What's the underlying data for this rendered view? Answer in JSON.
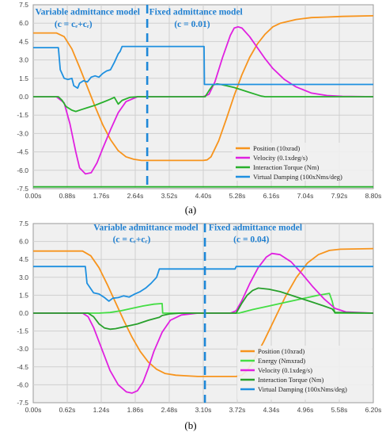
{
  "chart_data": [
    {
      "type": "line",
      "panel_label": "(a)",
      "xlim": [
        0,
        8.8
      ],
      "ylim": [
        -7.5,
        7.5
      ],
      "x_ticks": [
        "0.00s",
        "0.88s",
        "1.76s",
        "2.64s",
        "3.52s",
        "4.40s",
        "5.28s",
        "6.16s",
        "7.04s",
        "7.92s",
        "8.80s"
      ],
      "y_ticks": [
        "7.5",
        "6.0",
        "4.5",
        "3.0",
        "1.5",
        "0.0",
        "-1.5",
        "-3.0",
        "-4.5",
        "-6.0",
        "-7.5"
      ],
      "grid": true,
      "legend_position": "bottom-right",
      "divider_x": 2.95,
      "annotations": [
        {
          "text": "Variable  admittance model",
          "x": 0.05,
          "y": 6.7
        },
        {
          "text": "(c = cₑ+cᵣ)",
          "x": 0.55,
          "y": 5.7
        },
        {
          "text": "Fixed admittance model",
          "x": 3.0,
          "y": 6.7
        },
        {
          "text": "(c = 0.01)",
          "x": 3.65,
          "y": 5.7
        }
      ],
      "colors": {
        "Position": "#f7941d",
        "Velocity": "#e020e0",
        "Interaction Torque": "#28b02c",
        "Virtual Damping": "#1e90e0"
      },
      "series": [
        {
          "name": "Position (10xrad)",
          "legend_name": "Position",
          "color": "#f7941d",
          "x": [
            0,
            0.6,
            0.8,
            1.0,
            1.2,
            1.4,
            1.6,
            1.8,
            2.0,
            2.2,
            2.4,
            2.6,
            2.8,
            3.2,
            4.4,
            4.5,
            4.6,
            4.8,
            5.0,
            5.2,
            5.4,
            5.6,
            5.8,
            6.0,
            6.2,
            6.4,
            6.8,
            7.2,
            7.6,
            8.0,
            8.8
          ],
          "y": [
            5.2,
            5.2,
            4.9,
            3.9,
            2.4,
            0.8,
            -0.8,
            -2.3,
            -3.5,
            -4.4,
            -4.9,
            -5.1,
            -5.2,
            -5.2,
            -5.2,
            -5.15,
            -4.9,
            -3.6,
            -1.8,
            0.1,
            1.8,
            3.2,
            4.3,
            5.1,
            5.7,
            6.0,
            6.3,
            6.45,
            6.5,
            6.55,
            6.6
          ]
        },
        {
          "name": "Velocity (0.1xdeg/s)",
          "legend_name": "Velocity",
          "color": "#e020e0",
          "x": [
            0,
            0.6,
            0.8,
            0.95,
            1.1,
            1.2,
            1.35,
            1.5,
            1.65,
            1.8,
            2.0,
            2.2,
            2.4,
            2.7,
            4.4,
            4.55,
            4.7,
            4.9,
            5.1,
            5.2,
            5.3,
            5.4,
            5.6,
            5.8,
            6.0,
            6.2,
            6.5,
            6.8,
            7.2,
            7.6,
            8.0,
            8.8
          ],
          "y": [
            0,
            0,
            -0.5,
            -2.2,
            -4.5,
            -5.8,
            -6.3,
            -6.2,
            -5.4,
            -4.2,
            -2.7,
            -1.3,
            -0.4,
            0,
            0,
            0.2,
            1.2,
            3.2,
            5.0,
            5.6,
            5.7,
            5.6,
            4.9,
            4.0,
            3.1,
            2.3,
            1.4,
            0.8,
            0.3,
            0.1,
            0.03,
            0
          ]
        },
        {
          "name": "Interaction Torque (Nm)",
          "legend_name": "Interaction Torque",
          "color": "#28b02c",
          "x": [
            0,
            0.65,
            0.75,
            0.85,
            1.0,
            1.1,
            1.25,
            1.4,
            1.6,
            1.8,
            2.0,
            2.1,
            2.2,
            2.3,
            2.5,
            2.7,
            4.45,
            4.55,
            4.65,
            4.75,
            4.85,
            5.0,
            5.2,
            5.4,
            5.6,
            5.8,
            5.9,
            6.0,
            6.2,
            8.8
          ],
          "y": [
            0,
            0,
            -0.3,
            -0.8,
            -1.1,
            -1.2,
            -1.05,
            -0.9,
            -0.7,
            -0.45,
            -0.2,
            -0.05,
            -0.6,
            -0.3,
            -0.05,
            0,
            0,
            0.5,
            0.95,
            1.05,
            1.0,
            0.9,
            0.75,
            0.55,
            0.35,
            0.15,
            0.05,
            0,
            0,
            0
          ]
        },
        {
          "name": "Virtual Damping (100xNms/deg)",
          "legend_name": "Virtual Damping",
          "color": "#1e90e0",
          "x": [
            0,
            0.65,
            0.7,
            0.8,
            0.9,
            1.0,
            1.05,
            1.15,
            1.2,
            1.3,
            1.4,
            1.5,
            1.6,
            1.7,
            1.8,
            1.9,
            2.0,
            2.1,
            2.2,
            2.25,
            2.3,
            2.35,
            4.42,
            4.43,
            8.8
          ],
          "y": [
            4.0,
            4.0,
            2.2,
            1.5,
            1.4,
            1.5,
            0.9,
            0.7,
            1.1,
            1.3,
            1.2,
            1.6,
            1.7,
            1.6,
            1.9,
            2.1,
            2.2,
            2.8,
            3.5,
            3.7,
            4.1,
            4.1,
            4.1,
            1.0,
            1.0
          ]
        },
        {
          "name": "Lower rail",
          "legend_name": "",
          "color": "#28b02c",
          "x": [
            0,
            8.8
          ],
          "y": [
            -7.35,
            -7.35
          ]
        }
      ]
    },
    {
      "type": "line",
      "panel_label": "(b)",
      "xlim": [
        0,
        6.2
      ],
      "ylim": [
        -7.5,
        7.5
      ],
      "x_ticks": [
        "0.00s",
        "0.62s",
        "1.24s",
        "1.86s",
        "2.48s",
        "3.10s",
        "3.72s",
        "4.34s",
        "4.96s",
        "5.58s",
        "6.20s"
      ],
      "y_ticks": [
        "7.5",
        "6.0",
        "4.5",
        "3.0",
        "1.5",
        "0.0",
        "-1.5",
        "-3.0",
        "-4.5",
        "-6.0",
        "-7.5"
      ],
      "grid": true,
      "legend_position": "bottom-right",
      "divider_x": 3.13,
      "annotations": [
        {
          "text": "Variable  admittance model",
          "x": 1.1,
          "y": 6.95
        },
        {
          "text": "(c = cₑ+cᵣ)",
          "x": 1.45,
          "y": 5.95
        },
        {
          "text": "Fixed admittance model",
          "x": 3.2,
          "y": 6.95
        },
        {
          "text": "(c = 0.04)",
          "x": 3.65,
          "y": 5.95
        }
      ],
      "colors": {
        "Position": "#f7941d",
        "Energy": "#44dd44",
        "Velocity": "#e020e0",
        "Interaction Torque": "#28a02c",
        "Virtual Damping": "#1e90e0"
      },
      "series": [
        {
          "name": "Position (10xrad)",
          "legend_name": "Position",
          "color": "#f7941d",
          "x": [
            0,
            0.9,
            1.05,
            1.2,
            1.35,
            1.5,
            1.65,
            1.8,
            1.95,
            2.1,
            2.25,
            2.4,
            2.6,
            2.8,
            3.0,
            3.7,
            3.8,
            3.9,
            4.0,
            4.2,
            4.4,
            4.6,
            4.8,
            5.0,
            5.2,
            5.4,
            5.6,
            6.2
          ],
          "y": [
            5.2,
            5.2,
            4.8,
            3.8,
            2.4,
            0.9,
            -0.6,
            -2.0,
            -3.2,
            -4.1,
            -4.7,
            -5.05,
            -5.2,
            -5.25,
            -5.3,
            -5.3,
            -5.2,
            -4.8,
            -4.1,
            -2.4,
            -0.5,
            1.4,
            3.0,
            4.2,
            4.9,
            5.25,
            5.35,
            5.4
          ]
        },
        {
          "name": "Energy (Nmxrad)",
          "legend_name": "Energy",
          "color": "#44dd44",
          "x": [
            0,
            1.0,
            1.2,
            1.4,
            1.6,
            1.8,
            2.0,
            2.2,
            2.35,
            2.36,
            2.4,
            3.5,
            3.7,
            3.75,
            4.0,
            4.3,
            4.6,
            4.9,
            5.2,
            5.4,
            5.45,
            5.5,
            6.2
          ],
          "y": [
            0,
            0,
            0,
            0.05,
            0.2,
            0.4,
            0.6,
            0.75,
            0.8,
            0,
            0,
            0,
            0,
            0,
            0.3,
            0.6,
            0.9,
            1.2,
            1.5,
            1.65,
            1.0,
            0,
            0
          ]
        },
        {
          "name": "Velocity (0.1xdeg/s)",
          "legend_name": "Velocity",
          "color": "#e020e0",
          "x": [
            0,
            0.9,
            1.0,
            1.1,
            1.25,
            1.4,
            1.55,
            1.7,
            1.8,
            1.9,
            2.0,
            2.1,
            2.2,
            2.35,
            2.5,
            2.7,
            3.0,
            3.6,
            3.7,
            3.8,
            3.95,
            4.1,
            4.25,
            4.35,
            4.5,
            4.7,
            4.9,
            5.1,
            5.3,
            5.5,
            5.7,
            6.2
          ],
          "y": [
            0,
            0,
            -0.3,
            -1.2,
            -3.0,
            -4.8,
            -6.0,
            -6.6,
            -6.7,
            -6.5,
            -5.8,
            -4.6,
            -3.2,
            -1.6,
            -0.6,
            -0.15,
            0,
            0,
            0.2,
            1.0,
            2.5,
            3.8,
            4.7,
            5.0,
            4.9,
            4.3,
            3.3,
            2.2,
            1.2,
            0.4,
            0.1,
            0
          ]
        },
        {
          "name": "Interaction Torque (Nm)",
          "legend_name": "Interaction Torque",
          "color": "#28a02c",
          "x": [
            0,
            1.0,
            1.1,
            1.2,
            1.3,
            1.4,
            1.5,
            1.7,
            1.9,
            2.1,
            2.3,
            2.35,
            2.5,
            2.7,
            3.7,
            3.8,
            3.9,
            4.0,
            4.1,
            4.3,
            4.5,
            4.7,
            4.9,
            5.1,
            5.3,
            5.45,
            5.5,
            6.2
          ],
          "y": [
            0,
            0,
            -0.3,
            -0.9,
            -1.25,
            -1.35,
            -1.3,
            -1.1,
            -0.9,
            -0.6,
            -0.35,
            -0.2,
            -0.05,
            0,
            0,
            0.8,
            1.5,
            1.9,
            2.1,
            2.0,
            1.8,
            1.5,
            1.2,
            0.9,
            0.6,
            0.35,
            0.05,
            0
          ]
        },
        {
          "name": "Virtual Damping (100xNms/deg)",
          "legend_name": "Virtual Damping",
          "color": "#1e90e0",
          "x": [
            0,
            0.95,
            0.98,
            1.1,
            1.2,
            1.3,
            1.38,
            1.45,
            1.55,
            1.65,
            1.75,
            1.85,
            1.95,
            2.05,
            2.15,
            2.25,
            2.3,
            2.35,
            3.68,
            3.7,
            6.2
          ],
          "y": [
            3.9,
            3.9,
            2.5,
            1.7,
            1.6,
            1.3,
            1.0,
            1.25,
            1.3,
            1.45,
            1.35,
            1.6,
            1.8,
            2.1,
            2.5,
            3.0,
            3.7,
            3.7,
            3.7,
            3.9,
            3.9
          ]
        }
      ]
    }
  ]
}
